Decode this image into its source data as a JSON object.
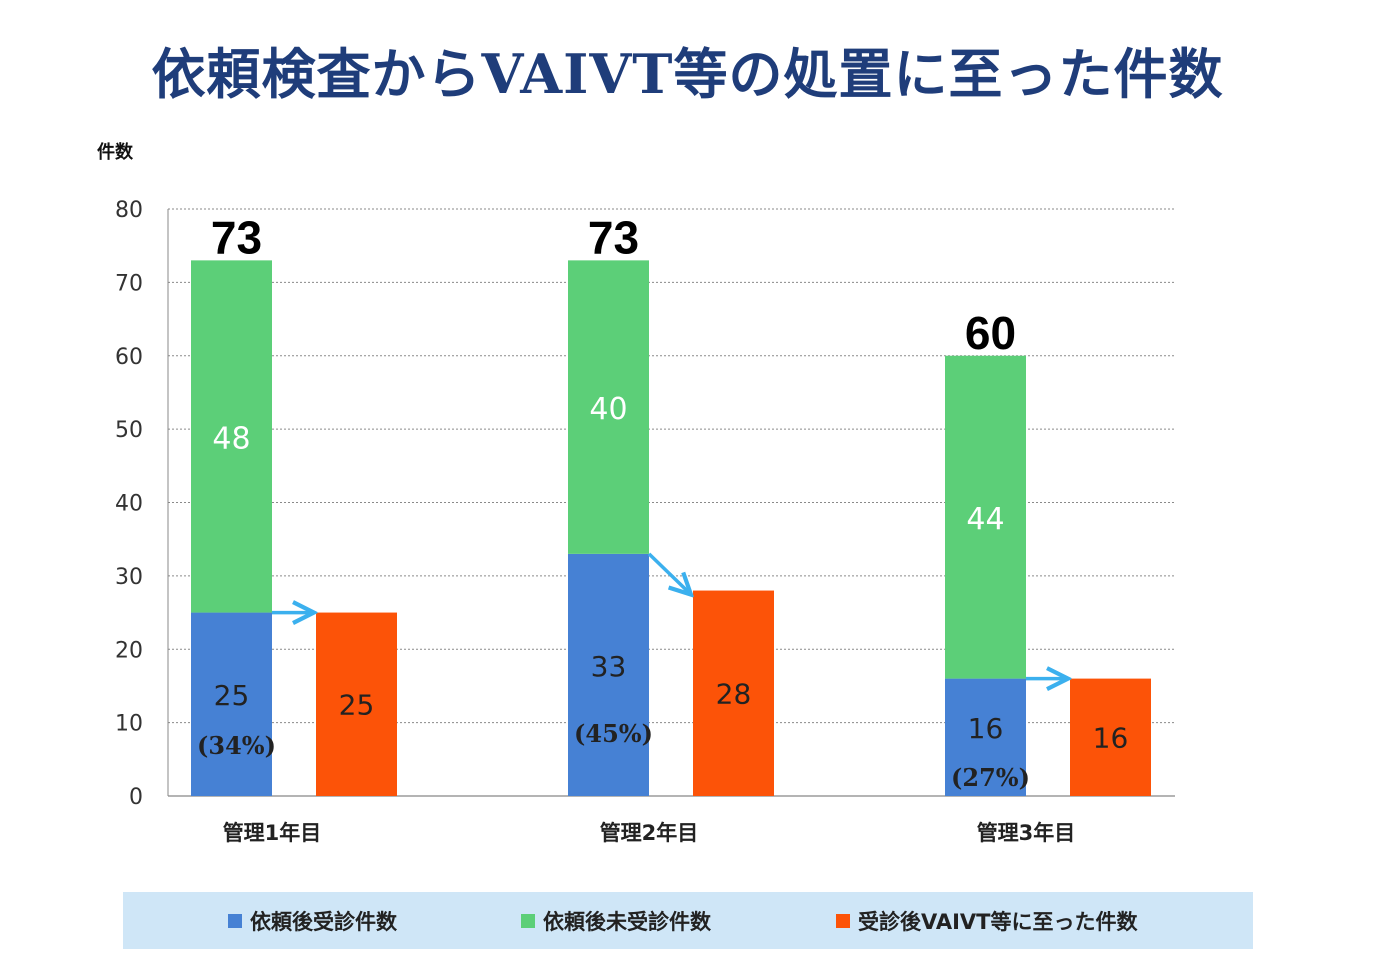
{
  "title": "依頼検査からVAIVT等の処置に至った件数",
  "colors": {
    "blue": "#4681d4",
    "green": "#5ccf78",
    "orange": "#fc5308",
    "arrow": "#3bb0ee",
    "title": "#1f3d7a"
  },
  "chart_data": {
    "type": "bar",
    "ylabel": "件数",
    "ylim": [
      0,
      80
    ],
    "yticks": [
      "0",
      "10",
      "20",
      "30",
      "40",
      "50",
      "60",
      "70",
      "80"
    ],
    "grid": true,
    "categories": [
      "管理1年目",
      "管理2年目",
      "管理3年目"
    ],
    "series": [
      {
        "name": "依頼後受診件数",
        "stack": "A",
        "values": [
          25,
          33,
          16
        ]
      },
      {
        "name": "依頼後未受診件数",
        "stack": "A",
        "values": [
          48,
          40,
          44
        ]
      },
      {
        "name": "受診後VAIVT等に至った件数",
        "stack": "B",
        "values": [
          25,
          28,
          16
        ]
      }
    ],
    "totals": [
      "73",
      "73",
      "60"
    ],
    "percent_labels": [
      "(34%)",
      "(45%)",
      "(27%)"
    ],
    "legend_position": "bottom"
  }
}
